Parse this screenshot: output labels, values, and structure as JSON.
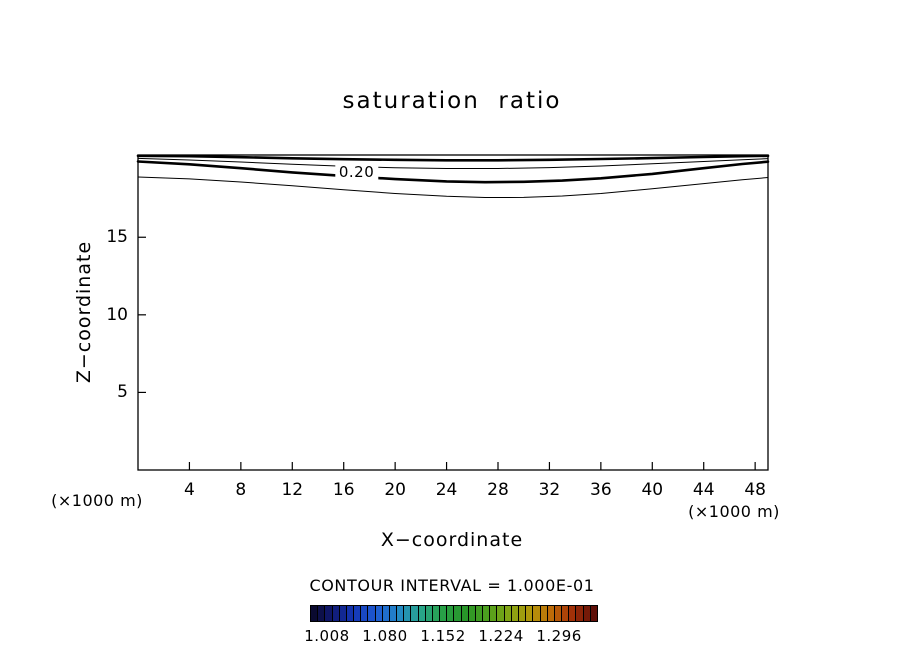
{
  "chart_data": {
    "type": "contour",
    "title": "saturation  ratio",
    "xlabel": "X−coordinate",
    "ylabel": "Z−coordinate",
    "x_unit": "(×1000 m)",
    "x_ticks": [
      4,
      8,
      12,
      16,
      20,
      24,
      28,
      32,
      36,
      40,
      44,
      48
    ],
    "y_ticks": [
      5,
      10,
      15
    ],
    "x_range": [
      0,
      49
    ],
    "z_range": [
      0,
      20.3
    ],
    "grid": false,
    "contour_interval_text": "CONTOUR INTERVAL = 1.000E-01",
    "contour_label": "0.20",
    "contour_label_pos": {
      "x": 17.0,
      "z": 19.2
    },
    "contours": [
      {
        "id": "top-thick",
        "style": "thick",
        "points": [
          [
            0,
            20.25
          ],
          [
            4,
            20.22
          ],
          [
            8,
            20.16
          ],
          [
            12,
            20.09
          ],
          [
            16,
            20.03
          ],
          [
            20,
            19.99
          ],
          [
            24,
            19.96
          ],
          [
            28,
            19.96
          ],
          [
            32,
            19.99
          ],
          [
            36,
            20.04
          ],
          [
            40,
            20.1
          ],
          [
            44,
            20.17
          ],
          [
            47,
            20.22
          ],
          [
            49,
            20.25
          ]
        ]
      },
      {
        "id": "upper-thin",
        "style": "thin",
        "points": [
          [
            0,
            20.08
          ],
          [
            4,
            19.98
          ],
          [
            8,
            19.85
          ],
          [
            12,
            19.7
          ],
          [
            16,
            19.57
          ],
          [
            20,
            19.48
          ],
          [
            24,
            19.43
          ],
          [
            28,
            19.43
          ],
          [
            32,
            19.49
          ],
          [
            36,
            19.59
          ],
          [
            40,
            19.73
          ],
          [
            44,
            19.88
          ],
          [
            47,
            20.0
          ],
          [
            49,
            20.07
          ]
        ]
      },
      {
        "id": "labeled-020-thick",
        "style": "thick",
        "label": "0.20",
        "points": [
          [
            0,
            19.88
          ],
          [
            4,
            19.7
          ],
          [
            8,
            19.45
          ],
          [
            12,
            19.18
          ],
          [
            16,
            18.95
          ],
          [
            20,
            18.75
          ],
          [
            24,
            18.6
          ],
          [
            27,
            18.55
          ],
          [
            30,
            18.57
          ],
          [
            33,
            18.65
          ],
          [
            36,
            18.8
          ],
          [
            40,
            19.08
          ],
          [
            44,
            19.45
          ],
          [
            47,
            19.72
          ],
          [
            49,
            19.87
          ]
        ]
      },
      {
        "id": "lower-thin",
        "style": "thin",
        "points": [
          [
            0,
            18.88
          ],
          [
            4,
            18.76
          ],
          [
            8,
            18.56
          ],
          [
            12,
            18.32
          ],
          [
            16,
            18.06
          ],
          [
            20,
            17.82
          ],
          [
            24,
            17.64
          ],
          [
            27,
            17.56
          ],
          [
            30,
            17.57
          ],
          [
            33,
            17.66
          ],
          [
            36,
            17.82
          ],
          [
            40,
            18.12
          ],
          [
            44,
            18.46
          ],
          [
            47,
            18.7
          ],
          [
            49,
            18.85
          ]
        ]
      }
    ],
    "colorbar": {
      "labels": [
        "1.008",
        "1.080",
        "1.152",
        "1.224",
        "1.296"
      ],
      "cells": 40,
      "anchor_colors": [
        [
          0.0,
          "#0a0a30"
        ],
        [
          0.06,
          "#10186e"
        ],
        [
          0.14,
          "#1436b4"
        ],
        [
          0.22,
          "#1e5ad2"
        ],
        [
          0.3,
          "#2387c8"
        ],
        [
          0.38,
          "#28a58c"
        ],
        [
          0.46,
          "#28a048"
        ],
        [
          0.54,
          "#289628"
        ],
        [
          0.62,
          "#4da01e"
        ],
        [
          0.7,
          "#86a514"
        ],
        [
          0.78,
          "#b4960a"
        ],
        [
          0.85,
          "#be6908"
        ],
        [
          0.92,
          "#a53208"
        ],
        [
          1.0,
          "#5f0f08"
        ]
      ],
      "line_color": "#000000"
    },
    "line_color": "#000000",
    "background_color": "#ffffff"
  }
}
